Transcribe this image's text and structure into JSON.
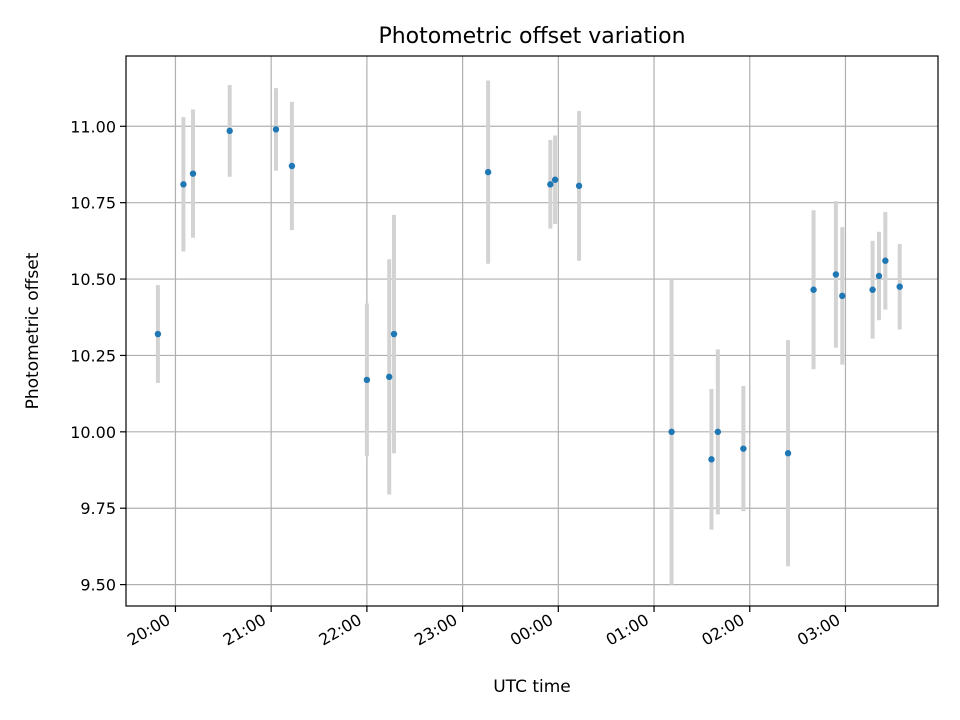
{
  "chart_data": {
    "type": "scatter",
    "title": "Photometric offset variation",
    "xlabel": "UTC time",
    "ylabel": "Photometric offset",
    "xlim": [
      "2000-01-01T19:29:00",
      "2000-01-02T03:58:00"
    ],
    "ylim": [
      9.43,
      11.23
    ],
    "grid": true,
    "x_ticks": [
      {
        "t": "2000-01-01T20:00:00",
        "label": "20:00"
      },
      {
        "t": "2000-01-01T21:00:00",
        "label": "21:00"
      },
      {
        "t": "2000-01-01T22:00:00",
        "label": "22:00"
      },
      {
        "t": "2000-01-01T23:00:00",
        "label": "23:00"
      },
      {
        "t": "2000-01-02T00:00:00",
        "label": "00:00"
      },
      {
        "t": "2000-01-02T01:00:00",
        "label": "01:00"
      },
      {
        "t": "2000-01-02T02:00:00",
        "label": "02:00"
      },
      {
        "t": "2000-01-02T03:00:00",
        "label": "03:00"
      }
    ],
    "y_ticks": [
      {
        "v": 9.5,
        "label": "9.50"
      },
      {
        "v": 9.75,
        "label": "9.75"
      },
      {
        "v": 10.0,
        "label": "10.00"
      },
      {
        "v": 10.25,
        "label": "10.25"
      },
      {
        "v": 10.5,
        "label": "10.50"
      },
      {
        "v": 10.75,
        "label": "10.75"
      },
      {
        "v": 11.0,
        "label": "11.00"
      }
    ],
    "colors": {
      "point": "#1f77b4",
      "errorbar": "#d3d3d3",
      "grid": "#b0b0b0"
    },
    "points": [
      {
        "t": "2000-01-01T19:49:00",
        "y": 10.32,
        "err": 0.16
      },
      {
        "t": "2000-01-01T20:05:00",
        "y": 10.81,
        "err": 0.22
      },
      {
        "t": "2000-01-01T20:11:00",
        "y": 10.845,
        "err": 0.21
      },
      {
        "t": "2000-01-01T20:34:00",
        "y": 10.985,
        "err": 0.15
      },
      {
        "t": "2000-01-01T21:03:00",
        "y": 10.99,
        "err": 0.135
      },
      {
        "t": "2000-01-01T21:13:00",
        "y": 10.87,
        "err": 0.21
      },
      {
        "t": "2000-01-01T22:00:00",
        "y": 10.17,
        "err": 0.25
      },
      {
        "t": "2000-01-01T22:14:00",
        "y": 10.18,
        "err": 0.385
      },
      {
        "t": "2000-01-01T22:17:00",
        "y": 10.32,
        "err": 0.39
      },
      {
        "t": "2000-01-01T23:16:00",
        "y": 10.85,
        "err": 0.3
      },
      {
        "t": "2000-01-01T23:55:00",
        "y": 10.81,
        "err": 0.145
      },
      {
        "t": "2000-01-01T23:58:00",
        "y": 10.825,
        "err": 0.145
      },
      {
        "t": "2000-01-02T00:13:00",
        "y": 10.805,
        "err": 0.245
      },
      {
        "t": "2000-01-02T01:11:00",
        "y": 10.0,
        "err": 0.5
      },
      {
        "t": "2000-01-02T01:36:00",
        "y": 9.91,
        "err": 0.23
      },
      {
        "t": "2000-01-02T01:40:00",
        "y": 10.0,
        "err": 0.27
      },
      {
        "t": "2000-01-02T01:56:00",
        "y": 9.945,
        "err": 0.205
      },
      {
        "t": "2000-01-02T02:24:00",
        "y": 9.93,
        "err": 0.37
      },
      {
        "t": "2000-01-02T02:40:00",
        "y": 10.465,
        "err": 0.26
      },
      {
        "t": "2000-01-02T02:54:00",
        "y": 10.515,
        "err": 0.24
      },
      {
        "t": "2000-01-02T02:58:00",
        "y": 10.445,
        "err": 0.225
      },
      {
        "t": "2000-01-02T03:17:00",
        "y": 10.465,
        "err": 0.16
      },
      {
        "t": "2000-01-02T03:21:00",
        "y": 10.51,
        "err": 0.145
      },
      {
        "t": "2000-01-02T03:25:00",
        "y": 10.56,
        "err": 0.16
      },
      {
        "t": "2000-01-02T03:34:00",
        "y": 10.475,
        "err": 0.14
      }
    ]
  }
}
